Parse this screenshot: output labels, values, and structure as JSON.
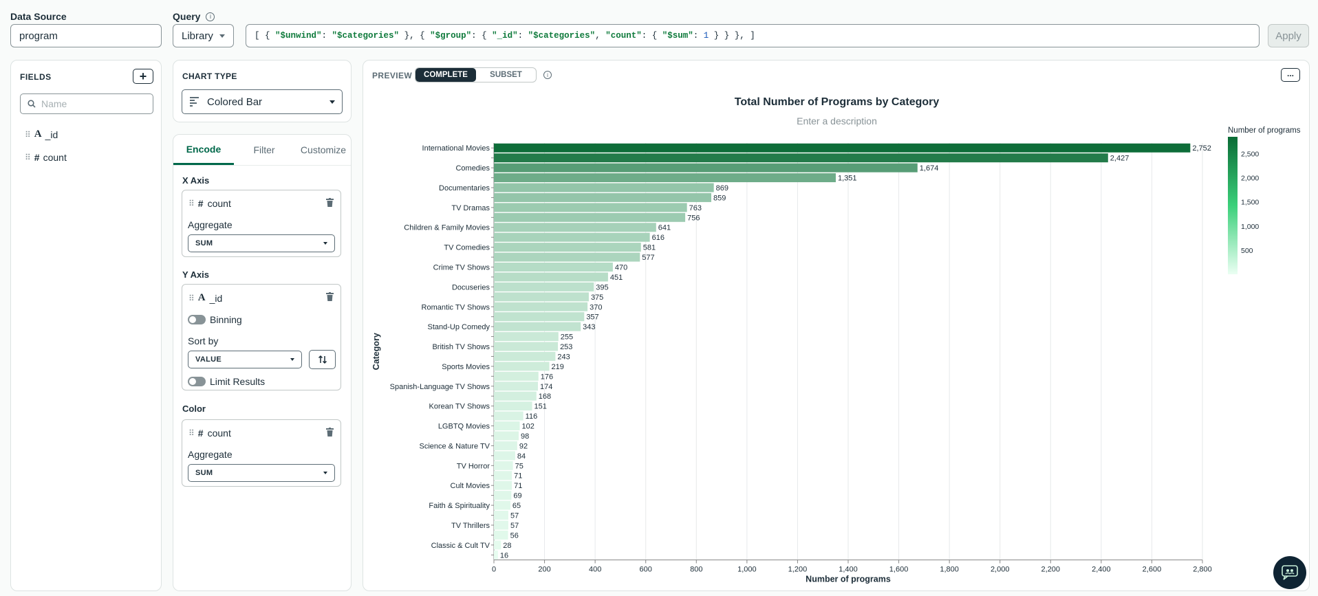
{
  "data_source": {
    "label": "Data Source",
    "value": "program"
  },
  "query": {
    "label": "Query",
    "info": "i",
    "mode": "Library",
    "text": "[ { \"$unwind\": \"$categories\" }, { \"$group\": { \"_id\": \"$categories\", \"count\": { \"$sum\": 1 } } }, ]",
    "apply": "Apply"
  },
  "fields": {
    "title": "FIELDS",
    "add": "+",
    "search_placeholder": "Name",
    "items": [
      {
        "icon": "A",
        "name": "_id"
      },
      {
        "icon": "#",
        "name": "count"
      }
    ]
  },
  "chart_type": {
    "title": "CHART TYPE",
    "value": "Colored Bar"
  },
  "tabs": [
    "Encode",
    "Filter",
    "Customize"
  ],
  "encode": {
    "x_axis": {
      "title": "X Axis",
      "field_icon": "#",
      "field": "count",
      "agg_label": "Aggregate",
      "agg": "SUM"
    },
    "y_axis": {
      "title": "Y Axis",
      "field_icon": "A",
      "field": "_id",
      "binning": "Binning",
      "sort_label": "Sort by",
      "sort": "VALUE",
      "limit": "Limit Results"
    },
    "color": {
      "title": "Color",
      "field_icon": "#",
      "field": "count",
      "agg_label": "Aggregate",
      "agg": "SUM"
    }
  },
  "preview": {
    "label": "PREVIEW",
    "complete": "COMPLETE",
    "subset": "SUBSET",
    "info": "i",
    "more": "..."
  },
  "chart_data": {
    "type": "bar",
    "title": "Total Number of Programs by Category",
    "description_placeholder": "Enter a description",
    "xlabel": "Number of programs",
    "ylabel": "Category",
    "xlim": [
      0,
      2800
    ],
    "xticks": [
      "0",
      "200",
      "400",
      "600",
      "800",
      "1,000",
      "1,200",
      "1,400",
      "1,600",
      "1,800",
      "2,000",
      "2,200",
      "2,400",
      "2,600",
      "2,800"
    ],
    "legend": {
      "title": "Number of programs",
      "ticks": [
        "2,500",
        "2,000",
        "1,500",
        "1,000",
        "500"
      ]
    },
    "colors": {
      "low": "#ebfff3",
      "high": "#0b6b36"
    },
    "values": [
      2752,
      2427,
      1674,
      1351,
      869,
      859,
      763,
      756,
      641,
      616,
      581,
      577,
      470,
      451,
      395,
      375,
      370,
      357,
      343,
      255,
      253,
      243,
      219,
      176,
      174,
      168,
      151,
      116,
      102,
      98,
      92,
      84,
      75,
      71,
      71,
      69,
      65,
      57,
      57,
      56,
      28,
      16
    ],
    "value_labels": [
      "2,752",
      "2,427",
      "1,674",
      "1,351",
      "869",
      "859",
      "763",
      "756",
      "641",
      "616",
      "581",
      "577",
      "470",
      "451",
      "395",
      "375",
      "370",
      "357",
      "343",
      "255",
      "253",
      "243",
      "219",
      "176",
      "174",
      "168",
      "151",
      "116",
      "102",
      "98",
      "92",
      "84",
      "75",
      "71",
      "71",
      "69",
      "65",
      "57",
      "57",
      "56",
      "28",
      "16"
    ],
    "categories": [
      "International Movies",
      "",
      "Comedies",
      "",
      "Documentaries",
      "",
      "TV Dramas",
      "",
      "Children & Family Movies",
      "",
      "TV Comedies",
      "",
      "Crime TV Shows",
      "",
      "Docuseries",
      "",
      "Romantic TV Shows",
      "",
      "Stand-Up Comedy",
      "",
      "British TV Shows",
      "",
      "Sports Movies",
      "",
      "Spanish-Language TV Shows",
      "",
      "Korean TV Shows",
      "",
      "LGBTQ Movies",
      "",
      "Science & Nature TV",
      "",
      "TV Horror",
      "",
      "Cult Movies",
      "",
      "Faith & Spirituality",
      "",
      "TV Thrillers",
      "",
      "Classic & Cult TV",
      ""
    ]
  }
}
